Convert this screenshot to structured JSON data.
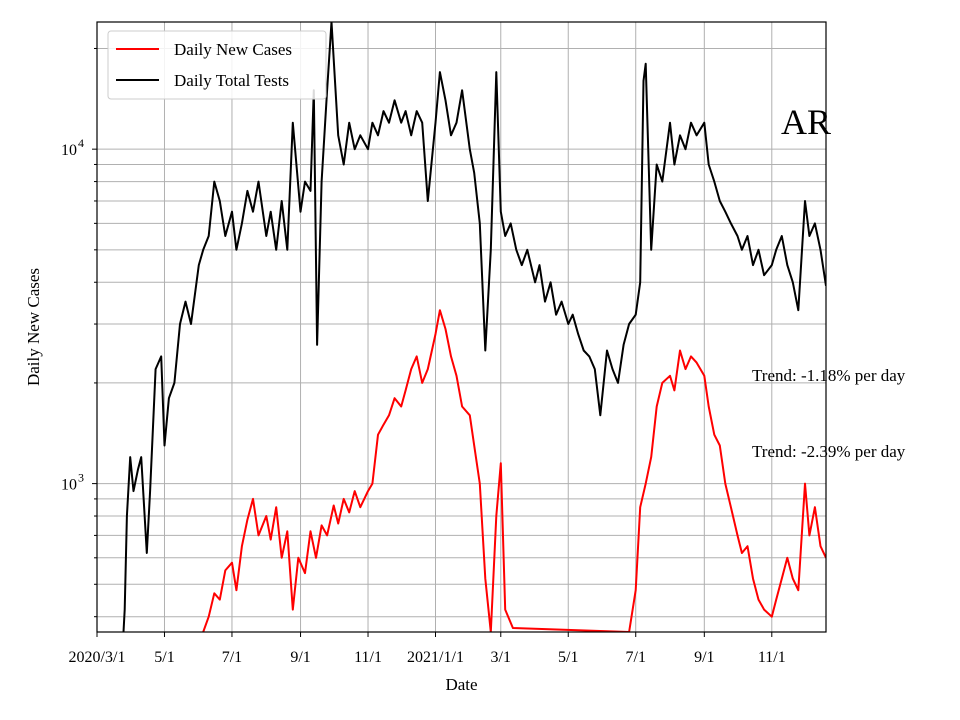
{
  "chart_data": {
    "type": "line",
    "title": "",
    "xlabel": "Date",
    "ylabel": "Daily New Cases",
    "yscale": "log",
    "ylim": [
      360,
      24000
    ],
    "xlim": [
      "2020-03-01",
      "2021-12-20"
    ],
    "grid": true,
    "legend_position": "top-left",
    "annotation": "AR",
    "x_ticks": [
      {
        "date": "2020-03-01",
        "label": "2020/3/1"
      },
      {
        "date": "2020-05-01",
        "label": "5/1"
      },
      {
        "date": "2020-07-01",
        "label": "7/1"
      },
      {
        "date": "2020-09-01",
        "label": "9/1"
      },
      {
        "date": "2020-11-01",
        "label": "11/1"
      },
      {
        "date": "2021-01-01",
        "label": "2021/1/1"
      },
      {
        "date": "2021-03-01",
        "label": "3/1"
      },
      {
        "date": "2021-05-01",
        "label": "5/1"
      },
      {
        "date": "2021-07-01",
        "label": "7/1"
      },
      {
        "date": "2021-09-01",
        "label": "9/1"
      },
      {
        "date": "2021-11-01",
        "label": "11/1"
      }
    ],
    "y_ticks": [
      {
        "value": 1000,
        "base": "10",
        "exp": "3"
      },
      {
        "value": 10000,
        "base": "10",
        "exp": "4"
      }
    ],
    "series": [
      {
        "name": "Daily New Cases",
        "color": "#ff0000",
        "trend_label": "Trend: -2.39% per day",
        "points": [
          [
            "2020-06-05",
            360
          ],
          [
            "2020-06-10",
            400
          ],
          [
            "2020-06-15",
            470
          ],
          [
            "2020-06-20",
            450
          ],
          [
            "2020-06-25",
            550
          ],
          [
            "2020-07-01",
            580
          ],
          [
            "2020-07-05",
            480
          ],
          [
            "2020-07-10",
            650
          ],
          [
            "2020-07-15",
            780
          ],
          [
            "2020-07-20",
            900
          ],
          [
            "2020-07-25",
            700
          ],
          [
            "2020-08-01",
            800
          ],
          [
            "2020-08-05",
            680
          ],
          [
            "2020-08-10",
            850
          ],
          [
            "2020-08-15",
            600
          ],
          [
            "2020-08-20",
            720
          ],
          [
            "2020-08-25",
            420
          ],
          [
            "2020-08-30",
            600
          ],
          [
            "2020-09-05",
            540
          ],
          [
            "2020-09-10",
            720
          ],
          [
            "2020-09-15",
            600
          ],
          [
            "2020-09-20",
            750
          ],
          [
            "2020-09-25",
            700
          ],
          [
            "2020-10-01",
            860
          ],
          [
            "2020-10-05",
            760
          ],
          [
            "2020-10-10",
            900
          ],
          [
            "2020-10-15",
            820
          ],
          [
            "2020-10-20",
            950
          ],
          [
            "2020-10-25",
            850
          ],
          [
            "2020-11-01",
            950
          ],
          [
            "2020-11-05",
            1000
          ],
          [
            "2020-11-10",
            1400
          ],
          [
            "2020-11-15",
            1500
          ],
          [
            "2020-11-20",
            1600
          ],
          [
            "2020-11-25",
            1800
          ],
          [
            "2020-12-01",
            1700
          ],
          [
            "2020-12-05",
            1900
          ],
          [
            "2020-12-10",
            2200
          ],
          [
            "2020-12-15",
            2400
          ],
          [
            "2020-12-20",
            2000
          ],
          [
            "2020-12-25",
            2200
          ],
          [
            "2021-01-01",
            2800
          ],
          [
            "2021-01-05",
            3300
          ],
          [
            "2021-01-10",
            2900
          ],
          [
            "2021-01-15",
            2400
          ],
          [
            "2021-01-20",
            2100
          ],
          [
            "2021-01-25",
            1700
          ],
          [
            "2021-02-01",
            1600
          ],
          [
            "2021-02-05",
            1300
          ],
          [
            "2021-02-10",
            1000
          ],
          [
            "2021-02-15",
            520
          ],
          [
            "2021-02-20",
            360
          ],
          [
            "2021-02-25",
            800
          ],
          [
            "2021-03-01",
            1150
          ],
          [
            "2021-03-05",
            420
          ],
          [
            "2021-03-12",
            370
          ],
          [
            "2021-06-25",
            360
          ],
          [
            "2021-07-01",
            480
          ],
          [
            "2021-07-05",
            850
          ],
          [
            "2021-07-10",
            1000
          ],
          [
            "2021-07-15",
            1200
          ],
          [
            "2021-07-20",
            1700
          ],
          [
            "2021-07-25",
            2000
          ],
          [
            "2021-08-01",
            2100
          ],
          [
            "2021-08-05",
            1900
          ],
          [
            "2021-08-10",
            2500
          ],
          [
            "2021-08-15",
            2200
          ],
          [
            "2021-08-20",
            2400
          ],
          [
            "2021-08-25",
            2300
          ],
          [
            "2021-09-01",
            2100
          ],
          [
            "2021-09-05",
            1700
          ],
          [
            "2021-09-10",
            1400
          ],
          [
            "2021-09-15",
            1300
          ],
          [
            "2021-09-20",
            1000
          ],
          [
            "2021-09-25",
            850
          ],
          [
            "2021-10-01",
            700
          ],
          [
            "2021-10-05",
            620
          ],
          [
            "2021-10-10",
            650
          ],
          [
            "2021-10-15",
            520
          ],
          [
            "2021-10-20",
            450
          ],
          [
            "2021-10-25",
            420
          ],
          [
            "2021-11-01",
            400
          ],
          [
            "2021-11-05",
            450
          ],
          [
            "2021-11-10",
            520
          ],
          [
            "2021-11-15",
            600
          ],
          [
            "2021-11-20",
            520
          ],
          [
            "2021-11-25",
            480
          ],
          [
            "2021-12-01",
            1000
          ],
          [
            "2021-12-05",
            700
          ],
          [
            "2021-12-10",
            850
          ],
          [
            "2021-12-15",
            650
          ],
          [
            "2021-12-20",
            600
          ]
        ]
      },
      {
        "name": "Daily Total Tests",
        "color": "#000000",
        "trend_label": "Trend: -1.18% per day",
        "points": [
          [
            "2020-03-25",
            360
          ],
          [
            "2020-03-26",
            420
          ],
          [
            "2020-03-28",
            800
          ],
          [
            "2020-03-31",
            1200
          ],
          [
            "2020-04-03",
            950
          ],
          [
            "2020-04-07",
            1100
          ],
          [
            "2020-04-10",
            1200
          ],
          [
            "2020-04-15",
            620
          ],
          [
            "2020-04-18",
            950
          ],
          [
            "2020-04-23",
            2200
          ],
          [
            "2020-04-28",
            2400
          ],
          [
            "2020-05-01",
            1300
          ],
          [
            "2020-05-05",
            1800
          ],
          [
            "2020-05-10",
            2000
          ],
          [
            "2020-05-15",
            3000
          ],
          [
            "2020-05-20",
            3500
          ],
          [
            "2020-05-25",
            3000
          ],
          [
            "2020-06-01",
            4500
          ],
          [
            "2020-06-05",
            5000
          ],
          [
            "2020-06-10",
            5500
          ],
          [
            "2020-06-15",
            8000
          ],
          [
            "2020-06-20",
            7000
          ],
          [
            "2020-06-25",
            5500
          ],
          [
            "2020-07-01",
            6500
          ],
          [
            "2020-07-05",
            5000
          ],
          [
            "2020-07-10",
            6000
          ],
          [
            "2020-07-15",
            7500
          ],
          [
            "2020-07-20",
            6500
          ],
          [
            "2020-07-25",
            8000
          ],
          [
            "2020-08-01",
            5500
          ],
          [
            "2020-08-05",
            6500
          ],
          [
            "2020-08-10",
            5000
          ],
          [
            "2020-08-15",
            7000
          ],
          [
            "2020-08-20",
            5000
          ],
          [
            "2020-08-25",
            12000
          ],
          [
            "2020-09-01",
            6500
          ],
          [
            "2020-09-05",
            8000
          ],
          [
            "2020-09-10",
            7500
          ],
          [
            "2020-09-13",
            15000
          ],
          [
            "2020-09-16",
            2600
          ],
          [
            "2020-09-20",
            8000
          ],
          [
            "2020-09-25",
            15000
          ],
          [
            "2020-09-29",
            24000
          ],
          [
            "2020-10-05",
            11000
          ],
          [
            "2020-10-10",
            9000
          ],
          [
            "2020-10-15",
            12000
          ],
          [
            "2020-10-20",
            10000
          ],
          [
            "2020-10-25",
            11000
          ],
          [
            "2020-11-01",
            10000
          ],
          [
            "2020-11-05",
            12000
          ],
          [
            "2020-11-10",
            11000
          ],
          [
            "2020-11-15",
            13000
          ],
          [
            "2020-11-20",
            12000
          ],
          [
            "2020-11-25",
            14000
          ],
          [
            "2020-12-01",
            12000
          ],
          [
            "2020-12-05",
            13000
          ],
          [
            "2020-12-10",
            11000
          ],
          [
            "2020-12-15",
            13000
          ],
          [
            "2020-12-20",
            12000
          ],
          [
            "2020-12-25",
            7000
          ],
          [
            "2021-01-01",
            12000
          ],
          [
            "2021-01-05",
            17000
          ],
          [
            "2021-01-10",
            14000
          ],
          [
            "2021-01-15",
            11000
          ],
          [
            "2021-01-20",
            12000
          ],
          [
            "2021-01-25",
            15000
          ],
          [
            "2021-02-01",
            10000
          ],
          [
            "2021-02-05",
            8500
          ],
          [
            "2021-02-10",
            6000
          ],
          [
            "2021-02-15",
            2500
          ],
          [
            "2021-02-20",
            5000
          ],
          [
            "2021-02-25",
            17000
          ],
          [
            "2021-03-01",
            6500
          ],
          [
            "2021-03-05",
            5500
          ],
          [
            "2021-03-10",
            6000
          ],
          [
            "2021-03-15",
            5000
          ],
          [
            "2021-03-20",
            4500
          ],
          [
            "2021-03-25",
            5000
          ],
          [
            "2021-04-01",
            4000
          ],
          [
            "2021-04-05",
            4500
          ],
          [
            "2021-04-10",
            3500
          ],
          [
            "2021-04-15",
            4000
          ],
          [
            "2021-04-20",
            3200
          ],
          [
            "2021-04-25",
            3500
          ],
          [
            "2021-05-01",
            3000
          ],
          [
            "2021-05-05",
            3200
          ],
          [
            "2021-05-10",
            2800
          ],
          [
            "2021-05-15",
            2500
          ],
          [
            "2021-05-20",
            2400
          ],
          [
            "2021-05-25",
            2200
          ],
          [
            "2021-05-30",
            1600
          ],
          [
            "2021-06-05",
            2500
          ],
          [
            "2021-06-10",
            2200
          ],
          [
            "2021-06-15",
            2000
          ],
          [
            "2021-06-20",
            2600
          ],
          [
            "2021-06-25",
            3000
          ],
          [
            "2021-07-01",
            3200
          ],
          [
            "2021-07-05",
            4000
          ],
          [
            "2021-07-08",
            16000
          ],
          [
            "2021-07-10",
            18000
          ],
          [
            "2021-07-15",
            5000
          ],
          [
            "2021-07-20",
            9000
          ],
          [
            "2021-07-25",
            8000
          ],
          [
            "2021-08-01",
            12000
          ],
          [
            "2021-08-05",
            9000
          ],
          [
            "2021-08-10",
            11000
          ],
          [
            "2021-08-15",
            10000
          ],
          [
            "2021-08-20",
            12000
          ],
          [
            "2021-08-25",
            11000
          ],
          [
            "2021-09-01",
            12000
          ],
          [
            "2021-09-05",
            9000
          ],
          [
            "2021-09-10",
            8000
          ],
          [
            "2021-09-15",
            7000
          ],
          [
            "2021-09-20",
            6500
          ],
          [
            "2021-09-25",
            6000
          ],
          [
            "2021-10-01",
            5500
          ],
          [
            "2021-10-05",
            5000
          ],
          [
            "2021-10-10",
            5500
          ],
          [
            "2021-10-15",
            4500
          ],
          [
            "2021-10-20",
            5000
          ],
          [
            "2021-10-25",
            4200
          ],
          [
            "2021-11-01",
            4500
          ],
          [
            "2021-11-05",
            5000
          ],
          [
            "2021-11-10",
            5500
          ],
          [
            "2021-11-15",
            4500
          ],
          [
            "2021-11-20",
            4000
          ],
          [
            "2021-11-25",
            3300
          ],
          [
            "2021-12-01",
            7000
          ],
          [
            "2021-12-05",
            5500
          ],
          [
            "2021-12-10",
            6000
          ],
          [
            "2021-12-15",
            5000
          ],
          [
            "2021-12-20",
            3900
          ]
        ]
      }
    ]
  }
}
